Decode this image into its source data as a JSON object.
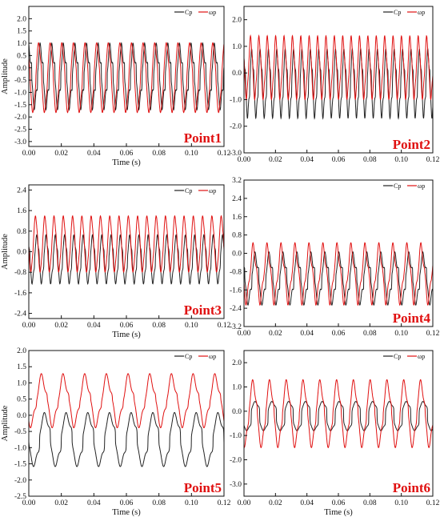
{
  "chart_data": [
    {
      "type": "line",
      "label": "Point1",
      "xlabel": "Time (s)",
      "ylabel": "Amplitude",
      "xlim": [
        0,
        0.12
      ],
      "ylim": [
        -3.2,
        2.5
      ],
      "xticks": [
        "0.00",
        "0.02",
        "0.04",
        "0.06",
        "0.08",
        "0.10",
        "0.12"
      ],
      "yticks": [
        "-3.0",
        "-2.5",
        "-2.0",
        "-1.5",
        "-1.0",
        "-0.5",
        "0.0",
        "0.5",
        "1.0",
        "1.5",
        "2.0"
      ],
      "yticks_values": [
        -3.0,
        -2.5,
        -2.0,
        -1.5,
        -1.0,
        -0.5,
        0.0,
        0.5,
        1.0,
        1.5,
        2.0
      ],
      "legend": [
        "Cp",
        "ωp"
      ],
      "period": 0.00714,
      "series": [
        {
          "name": "Cp",
          "color": "#222222",
          "mean": -0.35,
          "amplitude": 2.1,
          "sharpness": 0.8,
          "ripple": 0.3
        },
        {
          "name": "ωp",
          "color": "#e01010",
          "mean": -0.4,
          "amplitude": 2.6,
          "sharpness": 0.2,
          "ripple": 0.1
        }
      ]
    },
    {
      "type": "line",
      "label": "Point2",
      "xlabel": "",
      "ylabel": "",
      "xlim": [
        0,
        0.12
      ],
      "ylim": [
        -3.0,
        2.5
      ],
      "xticks": [
        "0.00",
        "0.02",
        "0.04",
        "0.06",
        "0.08",
        "0.10",
        "0.12"
      ],
      "yticks": [
        "-3.0",
        "-2.0",
        "-1.0",
        "0.0",
        "1.0",
        "2.0"
      ],
      "yticks_values": [
        -3.0,
        -2.0,
        -1.0,
        0.0,
        1.0,
        2.0
      ],
      "legend": [
        "Cp",
        "ωp"
      ],
      "period": 0.00533,
      "series": [
        {
          "name": "Cp",
          "color": "#222222",
          "mean": -0.4,
          "amplitude": 2.1,
          "sharpness": 0.6,
          "ripple": 0.25
        },
        {
          "name": "ωp",
          "color": "#e01010",
          "mean": 0.2,
          "amplitude": 2.1,
          "sharpness": 0.15,
          "ripple": 0.15
        }
      ]
    },
    {
      "type": "line",
      "label": "Point3",
      "xlabel": "Time (s)",
      "ylabel": "Amplitude",
      "xlim": [
        0,
        0.12
      ],
      "ylim": [
        -2.6,
        2.6
      ],
      "xticks": [
        "0.00",
        "0.02",
        "0.04",
        "0.06",
        "0.08",
        "0.10",
        "0.12"
      ],
      "yticks": [
        "-2.4",
        "-1.6",
        "-0.8",
        "0.0",
        "0.8",
        "1.6",
        "2.4"
      ],
      "yticks_values": [
        -2.4,
        -1.6,
        -0.8,
        0.0,
        0.8,
        1.6,
        2.4
      ],
      "legend": [
        "Cp",
        "ωp"
      ],
      "period": 0.00571,
      "series": [
        {
          "name": "Cp",
          "color": "#222222",
          "mean": -0.3,
          "amplitude": 1.6,
          "sharpness": 0.5,
          "ripple": 0.2
        },
        {
          "name": "ωp",
          "color": "#e01010",
          "mean": 0.3,
          "amplitude": 2.0,
          "sharpness": 0.15,
          "ripple": 0.1
        }
      ]
    },
    {
      "type": "line",
      "label": "Point4",
      "xlabel": "",
      "ylabel": "",
      "xlim": [
        0,
        0.12
      ],
      "ylim": [
        -3.2,
        3.2
      ],
      "xticks": [
        "0.00",
        "0.02",
        "0.04",
        "0.06",
        "0.08",
        "0.10",
        "0.12"
      ],
      "yticks": [
        "-3.2",
        "-2.4",
        "-1.6",
        "-0.8",
        "0.0",
        "0.8",
        "1.6",
        "2.4",
        "3.2"
      ],
      "yticks_values": [
        -3.2,
        -2.4,
        -1.6,
        -0.8,
        0.0,
        0.8,
        1.6,
        2.4,
        3.2
      ],
      "legend": [
        "Cp",
        "ωp"
      ],
      "period": 0.00889,
      "series": [
        {
          "name": "Cp",
          "color": "#222222",
          "mean": -1.1,
          "amplitude": 1.8,
          "sharpness": 0.8,
          "ripple": 0.3
        },
        {
          "name": "ωp",
          "color": "#e01010",
          "mean": -0.9,
          "amplitude": 2.2,
          "sharpness": 0.1,
          "ripple": 0.25
        }
      ]
    },
    {
      "type": "line",
      "label": "Point5",
      "xlabel": "Time (s)",
      "ylabel": "Amplitude",
      "xlim": [
        0,
        0.12
      ],
      "ylim": [
        -2.5,
        2.0
      ],
      "xticks": [
        "0.00",
        "0.02",
        "0.04",
        "0.06",
        "0.08",
        "0.10",
        "0.12"
      ],
      "yticks": [
        "-2.5",
        "-2.0",
        "-1.5",
        "-1.0",
        "-0.5",
        "0.0",
        "0.5",
        "1.0",
        "1.5",
        "2.0"
      ],
      "yticks_values": [
        -2.5,
        -2.0,
        -1.5,
        -1.0,
        -0.5,
        0.0,
        0.5,
        1.0,
        1.5,
        2.0
      ],
      "legend": [
        "Cp",
        "ωp"
      ],
      "period": 0.01333,
      "series": [
        {
          "name": "Cp",
          "color": "#222222",
          "mean": -0.75,
          "amplitude": 1.4,
          "sharpness": 0.7,
          "ripple": 0.2
        },
        {
          "name": "ωp",
          "color": "#e01010",
          "mean": 0.45,
          "amplitude": 1.35,
          "sharpness": 0.25,
          "ripple": 0.25
        }
      ]
    },
    {
      "type": "line",
      "label": "Point6",
      "xlabel": "Time (s)",
      "ylabel": "",
      "xlim": [
        0,
        0.12
      ],
      "ylim": [
        -3.5,
        2.5
      ],
      "xticks": [
        "0.00",
        "0.02",
        "0.04",
        "0.06",
        "0.08",
        "0.10",
        "0.12"
      ],
      "yticks": [
        "-3.0",
        "-2.0",
        "-1.0",
        "0.0",
        "1.0",
        "2.0"
      ],
      "yticks_values": [
        -3.0,
        -2.0,
        -1.0,
        0.0,
        1.0,
        2.0
      ],
      "legend": [
        "Cp",
        "ωp"
      ],
      "period": 0.01067,
      "series": [
        {
          "name": "Cp",
          "color": "#222222",
          "mean": -0.2,
          "amplitude": 1.1,
          "sharpness": 1.4,
          "ripple": 0.1
        },
        {
          "name": "ωp",
          "color": "#e01010",
          "mean": -0.1,
          "amplitude": 2.35,
          "sharpness": 0.3,
          "ripple": 0.2
        }
      ]
    }
  ]
}
